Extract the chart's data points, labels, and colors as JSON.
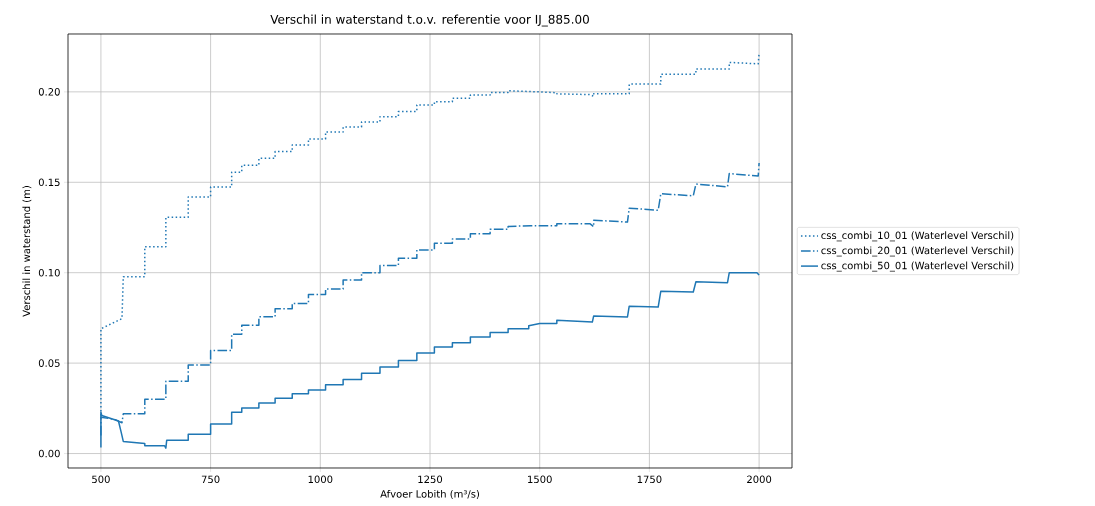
{
  "chart_data": {
    "type": "line",
    "title": "Verschil in waterstand t.o.v. referentie voor IJ_885.00",
    "xlabel": "Afvoer Lobith (m³/s)",
    "ylabel": "Verschil in waterstand (m)",
    "xlim": [
      425,
      2075
    ],
    "ylim": [
      -0.008,
      0.232
    ],
    "xticks": [
      500,
      750,
      1000,
      1250,
      1500,
      1750,
      2000
    ],
    "yticks": [
      {
        "value": 0,
        "label": "0.00"
      },
      {
        "value": 0.05,
        "label": "0.05"
      },
      {
        "value": 0.1,
        "label": "0.10"
      },
      {
        "value": 0.15,
        "label": "0.15"
      },
      {
        "value": 0.2,
        "label": "0.20"
      }
    ],
    "grid": true,
    "legend": "right",
    "marker": "none",
    "series": [
      {
        "name": "css_combi_10_01 (Waterlevel Verschil)",
        "color": "#1f77b4",
        "line_style": "dotted",
        "x": [
          500,
          500,
          548,
          551,
          600,
          600,
          648,
          648,
          699,
          699,
          750,
          750,
          798,
          798,
          821,
          821,
          860,
          860,
          897,
          897,
          936,
          936,
          973,
          973,
          1012,
          1012,
          1052,
          1052,
          1094,
          1094,
          1136,
          1136,
          1178,
          1178,
          1220,
          1220,
          1260,
          1260,
          1301,
          1301,
          1342,
          1342,
          1387,
          1387,
          1428,
          1428,
          1500,
          1539,
          1539,
          1615,
          1623,
          1623,
          1700,
          1704,
          1704,
          1776,
          1776,
          1856,
          1856,
          1932,
          1932,
          1998,
          2000
        ],
        "values": [
          0.021,
          0.069,
          0.0746,
          0.0978,
          0.0978,
          0.1144,
          0.1144,
          0.1307,
          0.1307,
          0.1419,
          0.1419,
          0.1474,
          0.1474,
          0.1556,
          0.1556,
          0.1594,
          0.1594,
          0.1633,
          0.1633,
          0.167,
          0.167,
          0.1706,
          0.1706,
          0.174,
          0.174,
          0.1778,
          0.1778,
          0.1806,
          0.1806,
          0.1833,
          0.1833,
          0.1863,
          0.1863,
          0.1891,
          0.1891,
          0.1928,
          0.1928,
          0.1946,
          0.1946,
          0.1965,
          0.1965,
          0.1983,
          0.1983,
          0.1996,
          0.1996,
          0.2006,
          0.2,
          0.1995,
          0.1989,
          0.1985,
          0.1975,
          0.199,
          0.199,
          0.199,
          0.2043,
          0.2043,
          0.2098,
          0.2098,
          0.2126,
          0.2126,
          0.2163,
          0.2155,
          0.2215
        ]
      },
      {
        "name": "css_combi_20_01 (Waterlevel Verschil)",
        "color": "#1f77b4",
        "line_style": "dashdot",
        "x": [
          500,
          500,
          530,
          548,
          551,
          600,
          600,
          648,
          648,
          699,
          699,
          750,
          750,
          798,
          798,
          821,
          821,
          860,
          860,
          897,
          897,
          936,
          936,
          973,
          973,
          1012,
          1012,
          1052,
          1052,
          1094,
          1094,
          1136,
          1136,
          1178,
          1178,
          1220,
          1220,
          1260,
          1260,
          1301,
          1301,
          1342,
          1342,
          1387,
          1387,
          1428,
          1428,
          1480,
          1539,
          1539,
          1615,
          1623,
          1623,
          1700,
          1704,
          1704,
          1770,
          1776,
          1776,
          1850,
          1856,
          1856,
          1928,
          1932,
          1932,
          1998,
          2000
        ],
        "values": [
          0.01,
          0.02,
          0.019,
          0.017,
          0.022,
          0.022,
          0.03,
          0.03,
          0.04,
          0.04,
          0.049,
          0.049,
          0.057,
          0.057,
          0.066,
          0.066,
          0.071,
          0.071,
          0.0756,
          0.0756,
          0.08,
          0.08,
          0.083,
          0.083,
          0.088,
          0.088,
          0.091,
          0.091,
          0.096,
          0.096,
          0.1,
          0.1,
          0.104,
          0.104,
          0.108,
          0.108,
          0.1126,
          0.1126,
          0.1163,
          0.1163,
          0.1187,
          0.1187,
          0.1215,
          0.1215,
          0.124,
          0.124,
          0.1256,
          0.126,
          0.126,
          0.127,
          0.127,
          0.1255,
          0.129,
          0.128,
          0.1357,
          0.1357,
          0.1345,
          0.1437,
          0.1437,
          0.1425,
          0.149,
          0.149,
          0.1475,
          0.1548,
          0.1548,
          0.1535,
          0.1607
        ]
      },
      {
        "name": "css_combi_50_01 (Waterlevel Verschil)",
        "color": "#1f77b4",
        "line_style": "solid",
        "x": [
          500,
          500,
          502,
          540,
          546,
          551,
          600,
          600,
          645,
          648,
          650,
          699,
          699,
          750,
          750,
          798,
          798,
          821,
          821,
          860,
          860,
          897,
          897,
          936,
          936,
          973,
          973,
          1012,
          1012,
          1052,
          1052,
          1094,
          1094,
          1136,
          1136,
          1178,
          1178,
          1220,
          1220,
          1260,
          1260,
          1301,
          1301,
          1342,
          1342,
          1387,
          1387,
          1428,
          1428,
          1475,
          1475,
          1500,
          1539,
          1539,
          1620,
          1623,
          1700,
          1704,
          1770,
          1776,
          1850,
          1856,
          1928,
          1932,
          1995,
          2000
        ],
        "values": [
          0.0033,
          0.0228,
          0.021,
          0.018,
          0.012,
          0.0067,
          0.0056,
          0.0043,
          0.0043,
          0.003,
          0.0074,
          0.0074,
          0.0107,
          0.0107,
          0.0163,
          0.0163,
          0.0228,
          0.0228,
          0.0252,
          0.0252,
          0.028,
          0.028,
          0.0306,
          0.0306,
          0.033,
          0.033,
          0.0352,
          0.0352,
          0.0381,
          0.0381,
          0.0409,
          0.0409,
          0.0444,
          0.0444,
          0.0478,
          0.0478,
          0.0515,
          0.0515,
          0.0556,
          0.0556,
          0.0589,
          0.0589,
          0.0613,
          0.0613,
          0.0644,
          0.0644,
          0.0669,
          0.0669,
          0.069,
          0.069,
          0.0707,
          0.0719,
          0.0719,
          0.0737,
          0.0727,
          0.0761,
          0.0755,
          0.0815,
          0.081,
          0.0898,
          0.0893,
          0.095,
          0.0945,
          0.1,
          0.1,
          0.0987
        ]
      }
    ]
  }
}
